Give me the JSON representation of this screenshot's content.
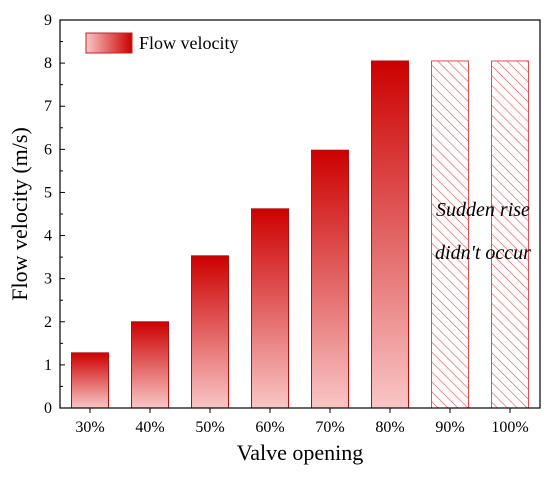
{
  "chart_data": {
    "type": "bar",
    "xlabel": "Valve opening",
    "ylabel": "Flow velocity (m/s)",
    "ylim": [
      0,
      9
    ],
    "yticks": [
      0,
      1,
      2,
      3,
      4,
      5,
      6,
      7,
      8,
      9
    ],
    "categories": [
      "30%",
      "40%",
      "50%",
      "60%",
      "70%",
      "80%",
      "90%",
      "100%"
    ],
    "series": [
      {
        "name": "Flow velocity",
        "values": [
          1.28,
          2.0,
          3.53,
          4.62,
          5.98,
          8.05,
          8.05,
          8.05
        ],
        "hatched": [
          false,
          false,
          false,
          false,
          false,
          false,
          true,
          true
        ]
      }
    ],
    "legend_position": "top-left",
    "annotation": [
      "Sudden rise",
      "didn't occur"
    ],
    "colors": {
      "bar_top": "#cc0000",
      "bar_bottom": "#f9c6c6",
      "hatch": "#e05050"
    }
  }
}
